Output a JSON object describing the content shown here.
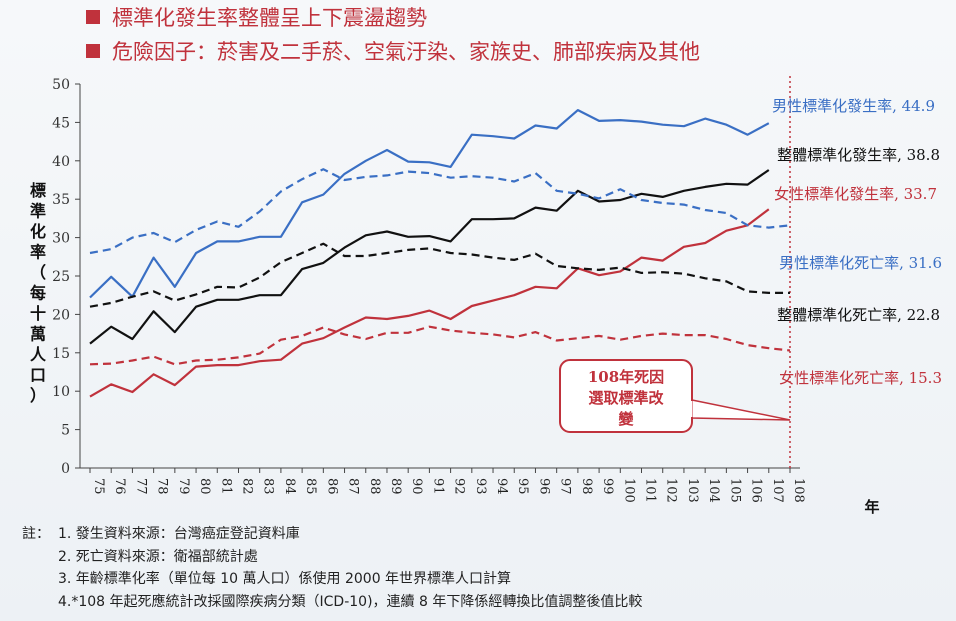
{
  "header": {
    "bullets": [
      "標準化發生率整體呈上下震盪趨勢",
      "危險因子：菸害及二手菸、空氣汙染、家族史、肺部疾病及其他"
    ]
  },
  "colors": {
    "male": "#3a6fc4",
    "female": "#c0323c",
    "total": "#111111",
    "axis": "#444444"
  },
  "chart_data": {
    "type": "line",
    "x": [
      "75",
      "76",
      "77",
      "78",
      "79",
      "80",
      "81",
      "82",
      "83",
      "84",
      "85",
      "86",
      "87",
      "88",
      "89",
      "90",
      "91",
      "92",
      "93",
      "94",
      "95",
      "96",
      "97",
      "98",
      "99",
      "100",
      "101",
      "102",
      "103",
      "104",
      "105",
      "106",
      "107",
      "108"
    ],
    "xlabel": "年",
    "ylabel": "標準化率（每十萬人口）",
    "ylim": [
      0,
      50
    ],
    "yticks": [
      0,
      5,
      10,
      15,
      20,
      25,
      30,
      35,
      40,
      45,
      50
    ],
    "series": [
      {
        "name": "男性標準化發生率",
        "label": "男性標準化發生率, 44.9",
        "color": "#3a6fc4",
        "dash": false,
        "values": [
          22.2,
          24.9,
          22.3,
          27.4,
          23.6,
          28.0,
          29.5,
          29.5,
          30.1,
          30.1,
          34.6,
          35.6,
          38.3,
          40.0,
          41.4,
          39.9,
          39.8,
          39.2,
          43.4,
          43.2,
          42.9,
          44.6,
          44.2,
          46.6,
          45.2,
          45.3,
          45.1,
          44.7,
          44.5,
          45.5,
          44.7,
          43.4,
          44.9,
          null
        ]
      },
      {
        "name": "整體標準化發生率",
        "label": "整體標準化發生率, 38.8",
        "color": "#111111",
        "dash": false,
        "values": [
          16.2,
          18.4,
          16.8,
          20.4,
          17.7,
          21.0,
          21.9,
          21.9,
          22.5,
          22.5,
          25.9,
          26.7,
          28.7,
          30.3,
          30.8,
          30.1,
          30.2,
          29.5,
          32.4,
          32.4,
          32.5,
          33.9,
          33.5,
          36.1,
          34.7,
          34.9,
          35.7,
          35.3,
          36.1,
          36.6,
          37.0,
          36.9,
          38.8,
          null
        ]
      },
      {
        "name": "女性標準化發生率",
        "label": "女性標準化發生率, 33.7",
        "color": "#c0323c",
        "dash": false,
        "values": [
          9.3,
          10.9,
          9.9,
          12.2,
          10.8,
          13.2,
          13.4,
          13.4,
          13.9,
          14.1,
          16.2,
          16.9,
          18.3,
          19.6,
          19.4,
          19.8,
          20.5,
          19.4,
          21.1,
          21.8,
          22.5,
          23.6,
          23.4,
          26.0,
          25.1,
          25.6,
          27.4,
          27.0,
          28.8,
          29.3,
          30.9,
          31.6,
          33.7,
          null
        ]
      },
      {
        "name": "男性標準化死亡率",
        "label": "男性標準化死亡率, 31.6",
        "color": "#3a6fc4",
        "dash": true,
        "values": [
          28.0,
          28.5,
          30.0,
          30.6,
          29.4,
          31.0,
          32.1,
          31.4,
          33.4,
          36.0,
          37.6,
          38.9,
          37.5,
          37.9,
          38.1,
          38.6,
          38.4,
          37.8,
          38.0,
          37.8,
          37.3,
          38.4,
          36.1,
          35.7,
          35.1,
          36.3,
          34.9,
          34.5,
          34.3,
          33.6,
          33.2,
          31.6,
          31.3,
          31.6
        ]
      },
      {
        "name": "整體標準化死亡率",
        "label": "整體標準化死亡率, 22.8",
        "color": "#111111",
        "dash": true,
        "values": [
          21.0,
          21.5,
          22.3,
          23.0,
          21.8,
          22.6,
          23.6,
          23.5,
          24.8,
          26.8,
          28.0,
          29.2,
          27.6,
          27.6,
          28.0,
          28.4,
          28.6,
          28.0,
          27.8,
          27.4,
          27.1,
          27.9,
          26.3,
          26.0,
          25.8,
          26.1,
          25.4,
          25.5,
          25.3,
          24.7,
          24.3,
          23.0,
          22.8,
          22.8
        ]
      },
      {
        "name": "女性標準化死亡率",
        "label": "女性標準化死亡率, 15.3",
        "color": "#c0323c",
        "dash": true,
        "values": [
          13.5,
          13.6,
          14.0,
          14.5,
          13.5,
          14.0,
          14.1,
          14.4,
          14.9,
          16.7,
          17.2,
          18.3,
          17.4,
          16.8,
          17.6,
          17.6,
          18.4,
          17.9,
          17.6,
          17.4,
          17.0,
          17.7,
          16.6,
          16.9,
          17.2,
          16.7,
          17.2,
          17.5,
          17.3,
          17.3,
          16.8,
          16.0,
          15.6,
          15.3
        ]
      }
    ],
    "annotation": {
      "lines": [
        "108年死因",
        "選取標準改",
        "變"
      ],
      "x": "108"
    },
    "vline": {
      "x": "108",
      "color": "#c0323c"
    }
  },
  "notes": {
    "label": "註：",
    "lines": [
      "1. 發生資料來源：台灣癌症登記資料庫",
      "2. 死亡資料來源：衛福部統計處",
      "3. 年齡標準化率（單位每 10 萬人口）係使用 2000 年世界標準人口計算",
      "4.*108 年起死應統計改採國際疾病分類（ICD-10)，連續 8 年下降係經轉換比值調整後值比較"
    ]
  }
}
